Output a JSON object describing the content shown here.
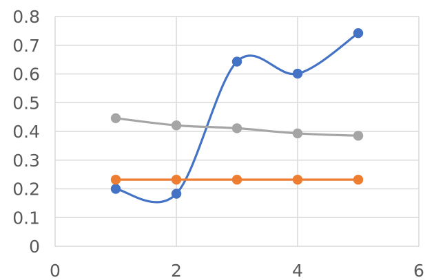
{
  "chart_data": {
    "type": "scatter",
    "title": "",
    "xlabel": "",
    "ylabel": "",
    "xlim": [
      0,
      6
    ],
    "ylim": [
      0,
      0.8
    ],
    "x_ticks": [
      0,
      2,
      4,
      6
    ],
    "y_ticks": [
      0,
      0.1,
      0.2,
      0.3,
      0.4,
      0.5,
      0.6,
      0.7,
      0.8
    ],
    "x_tick_labels": [
      "0",
      "2",
      "4",
      "6"
    ],
    "y_tick_labels": [
      "0",
      "0.1",
      "0.2",
      "0.3",
      "0.4",
      "0.5",
      "0.6",
      "0.7",
      "0.8"
    ],
    "grid": true,
    "legend": "none",
    "series": [
      {
        "color": "#4472c4",
        "smooth": true,
        "points": [
          [
            1,
            0.2
          ],
          [
            2,
            0.183
          ],
          [
            3,
            0.643
          ],
          [
            4,
            0.601
          ],
          [
            5,
            0.742
          ]
        ]
      },
      {
        "color": "#ed7d31",
        "smooth": false,
        "points": [
          [
            1,
            0.232
          ],
          [
            2,
            0.232
          ],
          [
            3,
            0.232
          ],
          [
            4,
            0.232
          ],
          [
            5,
            0.232
          ]
        ]
      },
      {
        "color": "#a5a5a5",
        "smooth": true,
        "points": [
          [
            1,
            0.446
          ],
          [
            2,
            0.421
          ],
          [
            3,
            0.411
          ],
          [
            4,
            0.393
          ],
          [
            5,
            0.385
          ]
        ]
      }
    ]
  }
}
